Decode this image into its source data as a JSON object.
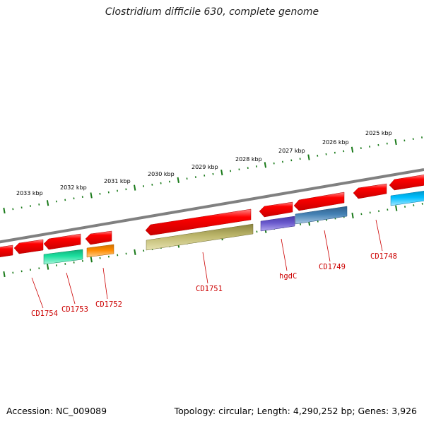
{
  "title": "Clostridium difficile 630, complete genome",
  "footer": {
    "accession": "Accession: NC_009089",
    "summary": "Topology: circular; Length: 4,290,252 bp; Genes: 3,926"
  },
  "colors": {
    "backbone": "#808080",
    "tick": "#1a7a1a",
    "gene_label": "#cc0000",
    "forward_gene": "#ff0000",
    "cog_teal": "#1de0a0",
    "cog_orange": "#ff8c00",
    "cog_olive": "#bdb76b",
    "cog_violet": "#6a5acd",
    "cog_steel": "#4682b4",
    "cog_sky": "#00bfff"
  },
  "kbp_labels": [
    "2033 kbp",
    "2032 kbp",
    "2031 kbp",
    "2030 kbp",
    "2029 kbp",
    "2028 kbp",
    "2027 kbp",
    "2026 kbp",
    "2025 kbp"
  ],
  "gene_labels": [
    "CD1754",
    "CD1753",
    "CD1752",
    "CD1751",
    "hgdC",
    "CD1749",
    "CD1748"
  ]
}
